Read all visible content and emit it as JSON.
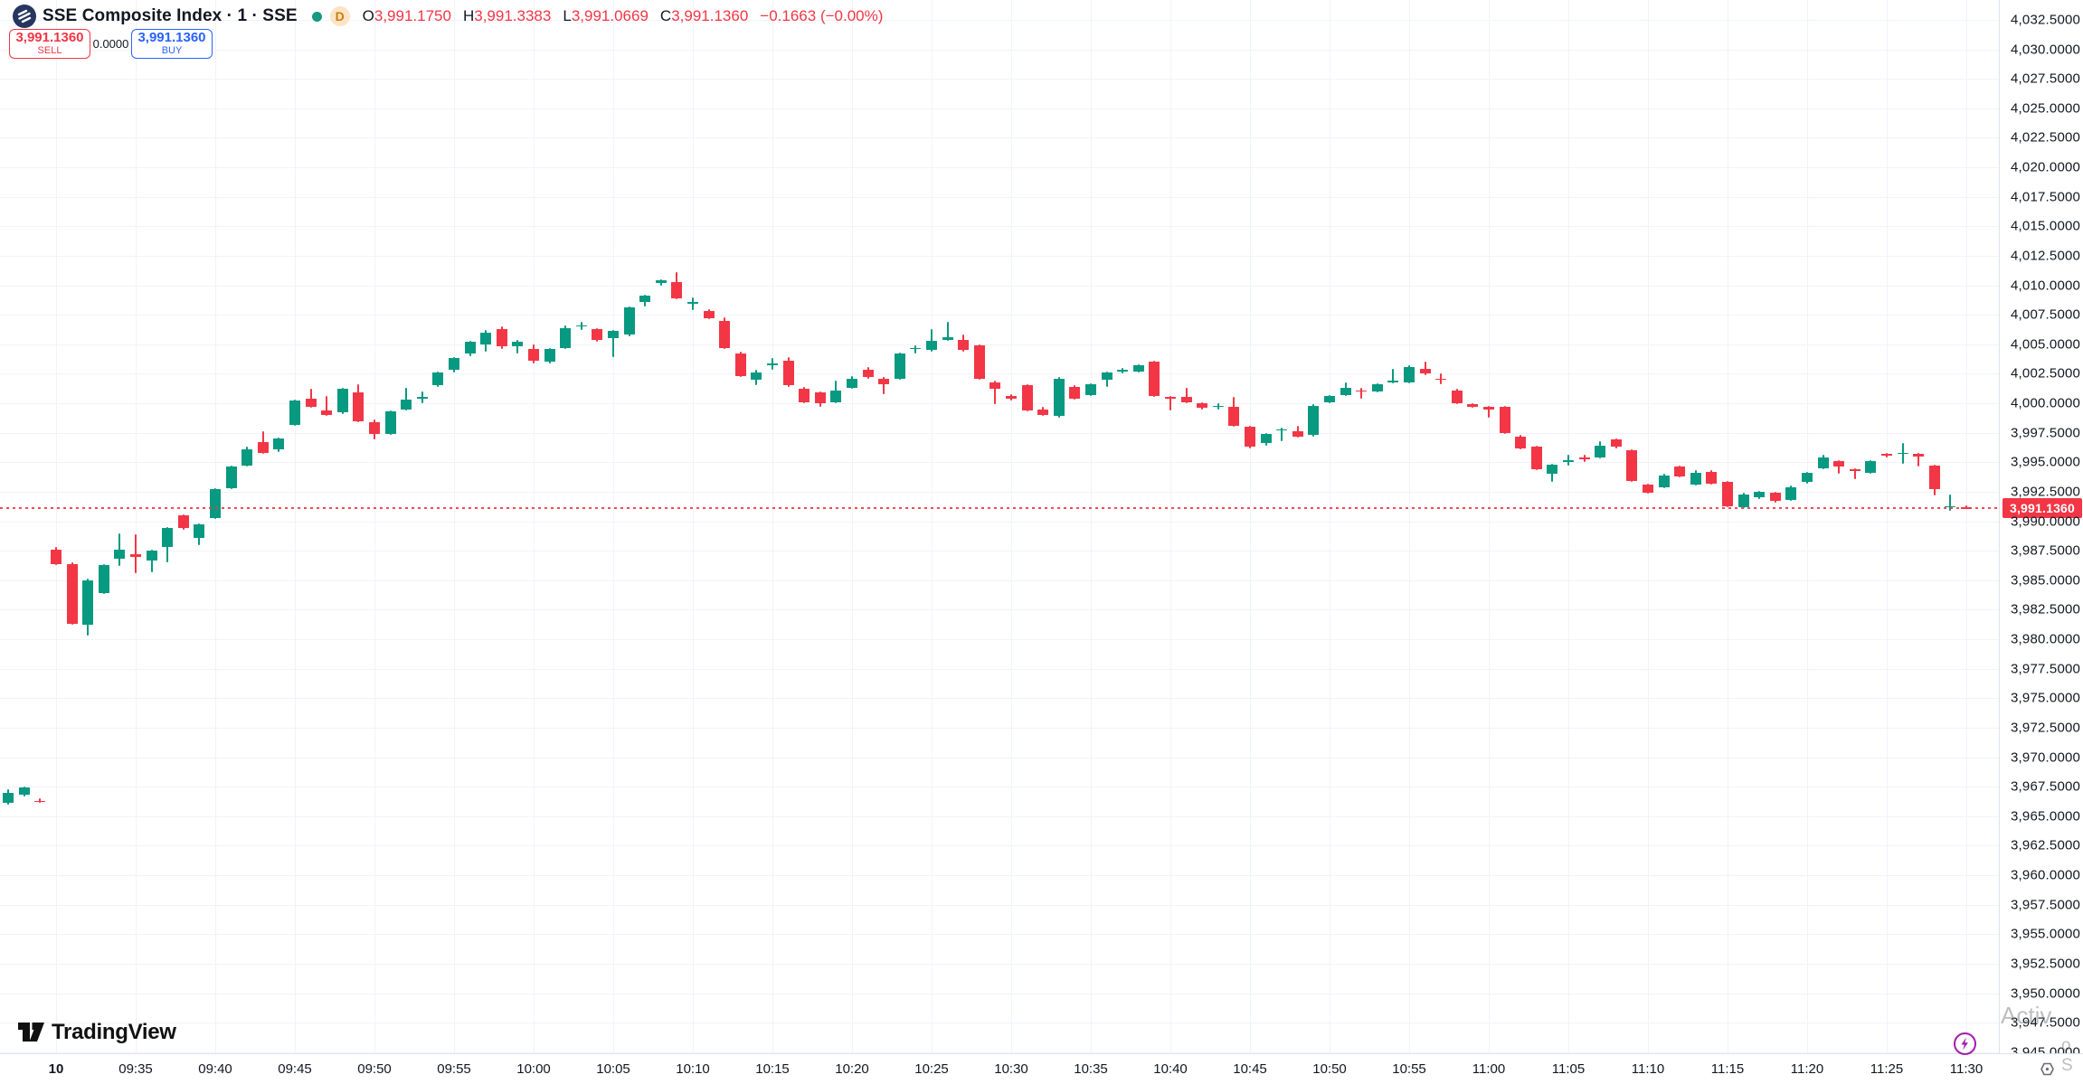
{
  "header": {
    "symbol": "SSE Composite Index",
    "separator": "·",
    "interval": "1",
    "exchange": "SSE",
    "delayed_badge": "D",
    "ohlc": {
      "o_label": "O",
      "o": "3,991.1750",
      "h_label": "H",
      "h": "3,991.3383",
      "l_label": "L",
      "l": "3,991.0669",
      "c_label": "C",
      "c": "3,991.1360",
      "change": "−0.1663",
      "change_pct": "(−0.00%)"
    }
  },
  "trade_panel": {
    "sell_price": "3,991.1360",
    "sell_label": "SELL",
    "spread": "0.0000",
    "buy_price": "3,991.1360",
    "buy_label": "BUY"
  },
  "price_axis": {
    "last_price_label": "3,991.1360"
  },
  "time_axis": {
    "day_label": "10",
    "labels": [
      "09:35",
      "09:40",
      "09:45",
      "09:50",
      "09:55",
      "10:00",
      "10:05",
      "10:10",
      "10:15",
      "10:20",
      "10:25",
      "10:30",
      "10:35",
      "10:40",
      "10:45",
      "10:50",
      "10:55",
      "11:00",
      "11:05",
      "11:10",
      "11:15",
      "11:20",
      "11:25",
      "11:30"
    ]
  },
  "logo_text": "TradingView",
  "watermark": {
    "line1": "Activ",
    "line2": "o S"
  },
  "colors": {
    "up": "#089981",
    "down": "#f23645",
    "buy": "#2962ff",
    "sell": "#f23645",
    "grid": "#f0f3fa",
    "axis_text": "#131722",
    "last_price_bg": "#f23645"
  },
  "chart_data": {
    "type": "candlestick",
    "title": "SSE Composite Index · 1 · SSE",
    "interval_minutes": 1,
    "x_start": "09:30",
    "x_end": "11:30",
    "session_start_index": 3,
    "y_axis": {
      "min": 3945.0,
      "max": 4032.5,
      "step": 2.5,
      "format_decimals": 4
    },
    "last_price": 3991.136,
    "grid": true,
    "legend_position": "none",
    "candles_ohlc": [
      [
        3966.1,
        3967.3,
        3966.0,
        3967.0
      ],
      [
        3966.8,
        3967.5,
        3966.7,
        3967.4
      ],
      [
        3966.3,
        3966.5,
        3966.1,
        3966.2
      ],
      [
        3987.6,
        3987.8,
        3986.3,
        3986.4
      ],
      [
        3986.4,
        3986.5,
        3981.2,
        3981.3
      ],
      [
        3981.2,
        3985.1,
        3980.3,
        3985.0
      ],
      [
        3983.9,
        3986.4,
        3983.8,
        3986.3
      ],
      [
        3986.8,
        3989.0,
        3986.2,
        3987.6
      ],
      [
        3987.2,
        3988.9,
        3985.6,
        3987.0
      ],
      [
        3986.7,
        3987.6,
        3985.7,
        3987.5
      ],
      [
        3987.8,
        3989.5,
        3986.5,
        3989.4
      ],
      [
        3990.5,
        3990.6,
        3989.3,
        3989.4
      ],
      [
        3988.6,
        3989.8,
        3988.0,
        3989.7
      ],
      [
        3990.3,
        3992.8,
        3990.2,
        3992.7
      ],
      [
        3992.8,
        3994.7,
        3992.7,
        3994.6
      ],
      [
        3994.7,
        3996.3,
        3994.6,
        3996.1
      ],
      [
        3996.7,
        3997.6,
        3995.7,
        3995.8
      ],
      [
        3996.1,
        3997.1,
        3995.9,
        3997.0
      ],
      [
        3998.2,
        4000.3,
        3998.1,
        4000.2
      ],
      [
        4000.4,
        4001.2,
        3999.6,
        3999.7
      ],
      [
        3999.4,
        4000.6,
        3998.9,
        3999.0
      ],
      [
        3999.2,
        4001.3,
        3999.1,
        4001.2
      ],
      [
        4000.9,
        4001.6,
        3998.4,
        3998.5
      ],
      [
        3998.4,
        3998.6,
        3996.9,
        3997.4
      ],
      [
        3997.4,
        3999.4,
        3997.3,
        3999.3
      ],
      [
        3999.5,
        4001.3,
        3999.4,
        4000.3
      ],
      [
        4000.4,
        4001.0,
        4000.0,
        4000.5
      ],
      [
        4001.5,
        4002.7,
        4001.4,
        4002.6
      ],
      [
        4002.8,
        4003.9,
        4002.6,
        4003.8
      ],
      [
        4004.2,
        4005.3,
        4004.0,
        4005.2
      ],
      [
        4005.0,
        4006.2,
        4004.4,
        4006.0
      ],
      [
        4006.3,
        4006.5,
        4004.6,
        4004.8
      ],
      [
        4004.8,
        4005.4,
        4004.2,
        4005.2
      ],
      [
        4004.6,
        4005.0,
        4003.4,
        4003.6
      ],
      [
        4003.5,
        4004.7,
        4003.4,
        4004.6
      ],
      [
        4004.7,
        4006.6,
        4004.6,
        4006.4
      ],
      [
        4006.6,
        4006.9,
        4006.2,
        4006.6
      ],
      [
        4006.3,
        4006.4,
        4005.2,
        4005.4
      ],
      [
        4005.5,
        4006.2,
        4003.9,
        4006.1
      ],
      [
        4005.8,
        4008.2,
        4005.7,
        4008.1
      ],
      [
        4008.6,
        4009.2,
        4008.2,
        4009.1
      ],
      [
        4010.2,
        4010.5,
        4010.0,
        4010.4
      ],
      [
        4010.3,
        4011.1,
        4008.8,
        4008.9
      ],
      [
        4008.4,
        4009.0,
        4007.9,
        4008.6
      ],
      [
        4007.8,
        4008.0,
        4007.1,
        4007.2
      ],
      [
        4007.0,
        4007.3,
        4004.6,
        4004.7
      ],
      [
        4004.2,
        4004.4,
        4002.2,
        4002.3
      ],
      [
        4002.0,
        4002.8,
        4001.5,
        4002.6
      ],
      [
        4003.2,
        4003.8,
        4002.8,
        4003.4
      ],
      [
        4003.6,
        4003.9,
        4001.4,
        4001.5
      ],
      [
        4001.2,
        4001.4,
        4000.0,
        4000.1
      ],
      [
        4000.9,
        4001.0,
        3999.7,
        4000.0
      ],
      [
        4000.1,
        4001.9,
        4000.0,
        4001.1
      ],
      [
        4001.3,
        4002.3,
        4001.2,
        4002.1
      ],
      [
        4002.8,
        4003.1,
        4002.1,
        4002.2
      ],
      [
        4002.1,
        4002.2,
        4000.8,
        4001.6
      ],
      [
        4002.1,
        4004.3,
        4002.0,
        4004.2
      ],
      [
        4004.6,
        4004.9,
        4004.2,
        4004.7
      ],
      [
        4004.5,
        4006.3,
        4004.4,
        4005.3
      ],
      [
        4005.4,
        4006.9,
        4005.3,
        4005.6
      ],
      [
        4005.4,
        4005.8,
        4004.4,
        4004.5
      ],
      [
        4004.9,
        4005.0,
        4002.0,
        4002.1
      ],
      [
        4001.8,
        4001.9,
        3999.9,
        4001.2
      ],
      [
        4000.6,
        4000.8,
        4000.2,
        4000.4
      ],
      [
        4001.5,
        4001.6,
        3999.3,
        3999.4
      ],
      [
        3999.5,
        3999.7,
        3998.9,
        3999.0
      ],
      [
        3998.9,
        4002.2,
        3998.8,
        4002.1
      ],
      [
        4001.4,
        4001.5,
        4000.3,
        4000.4
      ],
      [
        4000.7,
        4001.7,
        4000.6,
        4001.6
      ],
      [
        4002.0,
        4002.7,
        4001.4,
        4002.6
      ],
      [
        4002.8,
        4003.0,
        4002.5,
        4002.8
      ],
      [
        4002.7,
        4003.3,
        4002.6,
        4003.2
      ],
      [
        4003.5,
        4003.6,
        4000.5,
        4000.6
      ],
      [
        4000.5,
        4000.6,
        3999.4,
        4000.4
      ],
      [
        4000.5,
        4001.3,
        4000.0,
        4000.1
      ],
      [
        4000.0,
        4000.1,
        3999.5,
        3999.6
      ],
      [
        3999.7,
        4000.0,
        3999.5,
        3999.8
      ],
      [
        3999.7,
        4000.5,
        3998.0,
        3998.1
      ],
      [
        3998.0,
        3998.1,
        3996.2,
        3996.3
      ],
      [
        3996.6,
        3997.5,
        3996.4,
        3997.4
      ],
      [
        3997.7,
        3997.9,
        3996.8,
        3997.8
      ],
      [
        3997.6,
        3998.1,
        3997.1,
        3997.2
      ],
      [
        3997.3,
        3999.9,
        3997.2,
        3999.8
      ],
      [
        4000.1,
        4000.7,
        4000.0,
        4000.6
      ],
      [
        4000.7,
        4001.8,
        4000.6,
        4001.3
      ],
      [
        4001.1,
        4001.3,
        4000.4,
        4001.0
      ],
      [
        4001.0,
        4001.7,
        4000.9,
        4001.6
      ],
      [
        4001.8,
        4002.9,
        4001.7,
        4001.9
      ],
      [
        4001.8,
        4003.2,
        4001.7,
        4003.1
      ],
      [
        4002.9,
        4003.5,
        4002.4,
        4002.5
      ],
      [
        4002.1,
        4002.5,
        4001.6,
        4002.0
      ],
      [
        4001.1,
        4001.2,
        3999.9,
        4000.0
      ],
      [
        3999.9,
        4000.0,
        3999.6,
        3999.7
      ],
      [
        3999.7,
        3999.8,
        3998.8,
        3999.5
      ],
      [
        3999.7,
        3999.8,
        3997.4,
        3997.5
      ],
      [
        3997.2,
        3997.3,
        3996.1,
        3996.2
      ],
      [
        3996.3,
        3996.4,
        3994.3,
        3994.4
      ],
      [
        3994.0,
        3994.9,
        3993.3,
        3994.8
      ],
      [
        3995.0,
        3995.6,
        3994.7,
        3995.2
      ],
      [
        3995.4,
        3995.6,
        3995.0,
        3995.3
      ],
      [
        3995.4,
        3996.8,
        3995.3,
        3996.4
      ],
      [
        3996.9,
        3997.0,
        3996.2,
        3996.3
      ],
      [
        3996.0,
        3996.1,
        3993.3,
        3993.4
      ],
      [
        3993.1,
        3993.2,
        3992.3,
        3992.4
      ],
      [
        3992.9,
        3994.0,
        3992.8,
        3993.9
      ],
      [
        3994.6,
        3994.7,
        3993.7,
        3993.8
      ],
      [
        3993.1,
        3994.3,
        3993.0,
        3994.1
      ],
      [
        3994.2,
        3994.3,
        3993.1,
        3993.2
      ],
      [
        3993.3,
        3993.4,
        3991.2,
        3991.3
      ],
      [
        3991.2,
        3992.4,
        3991.1,
        3992.3
      ],
      [
        3992.0,
        3992.6,
        3991.9,
        3992.5
      ],
      [
        3992.4,
        3992.5,
        3991.6,
        3991.7
      ],
      [
        3991.8,
        3993.0,
        3991.7,
        3992.9
      ],
      [
        3993.3,
        3994.2,
        3993.2,
        3994.1
      ],
      [
        3994.5,
        3995.6,
        3994.4,
        3995.4
      ],
      [
        3995.1,
        3995.2,
        3994.0,
        3994.6
      ],
      [
        3994.4,
        3994.5,
        3993.6,
        3994.3
      ],
      [
        3994.1,
        3995.2,
        3994.0,
        3995.1
      ],
      [
        3995.7,
        3995.8,
        3995.4,
        3995.6
      ],
      [
        3995.7,
        3996.6,
        3994.9,
        3995.8
      ],
      [
        3995.7,
        3995.8,
        3994.6,
        3995.5
      ],
      [
        3994.7,
        3994.8,
        3992.2,
        3992.7
      ],
      [
        3991.2,
        3992.3,
        3990.9,
        3991.3
      ],
      [
        3991.175,
        3991.3383,
        3991.0669,
        3991.136
      ]
    ]
  }
}
